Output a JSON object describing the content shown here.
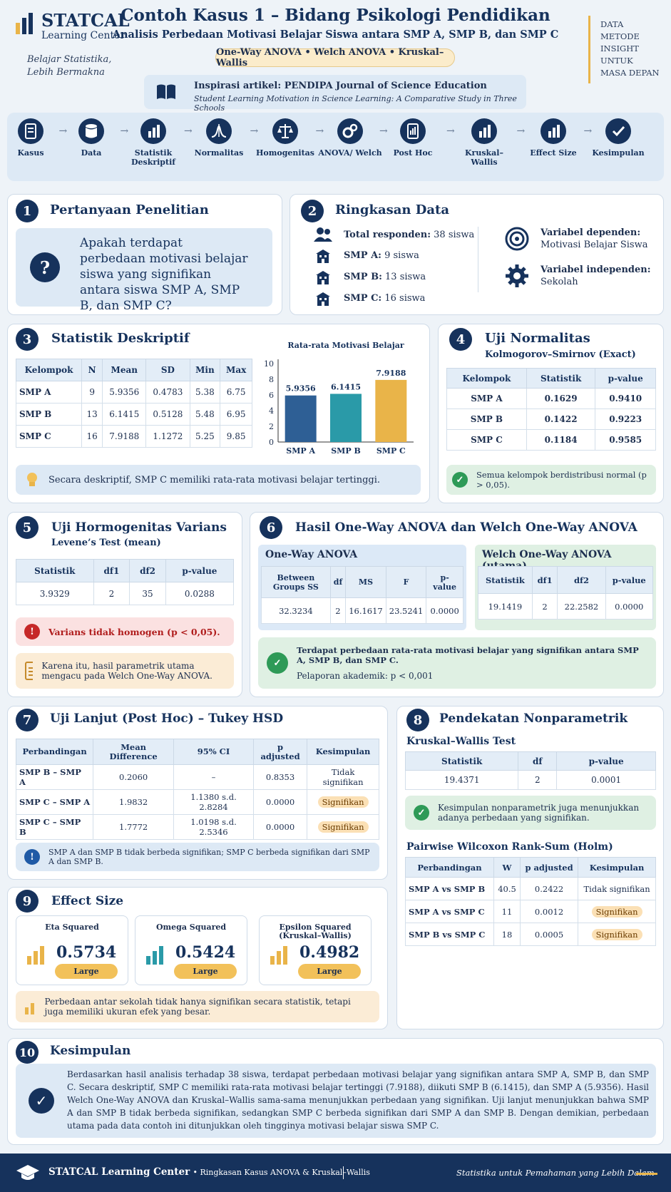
{
  "brand": {
    "name": "STATCAL",
    "sub": "Learning Center",
    "tagline1": "Belajar Statistika,",
    "tagline2": "Lebih Bermakna"
  },
  "header": {
    "title": "Contoh Kasus 1 – Bidang Psikologi Pendidikan",
    "subtitle": "Analisis Perbedaan Motivasi Belajar Siswa antara SMP A, SMP B, dan SMP C",
    "methods": "One-Way ANOVA • Welch ANOVA • Kruskal–Wallis",
    "inspiration": "Inspirasi artikel: PENDIPA Journal of Science Education",
    "article": "Student Learning Motivation in Science Learning: A Comparative Study in Three Schools",
    "side": [
      "DATA",
      "METODE",
      "INSIGHT",
      "UNTUK",
      "MASA DEPAN"
    ]
  },
  "steps": [
    {
      "label": "Kasus",
      "icon": "document-icon"
    },
    {
      "label": "Data",
      "icon": "database-icon"
    },
    {
      "label": "Statistik Deskriptif",
      "icon": "bar-chart-icon"
    },
    {
      "label": "Normalitas",
      "icon": "bell-curve-icon"
    },
    {
      "label": "Homogenitas",
      "icon": "scale-icon"
    },
    {
      "label": "ANOVA/ Welch",
      "icon": "gears-icon"
    },
    {
      "label": "Post Hoc",
      "icon": "report-icon"
    },
    {
      "label": "Kruskal–Wallis",
      "icon": "bar-chart-icon"
    },
    {
      "label": "Effect Size",
      "icon": "bar-chart-icon"
    },
    {
      "label": "Kesimpulan",
      "icon": "check-icon"
    }
  ],
  "s1": {
    "num": "1",
    "title": "Pertanyaan Penelitian",
    "question": "Apakah terdapat perbedaan motivasi belajar siswa yang signifikan antara siswa SMP A, SMP B, dan SMP C?"
  },
  "s2": {
    "num": "2",
    "title": "Ringkasan Data",
    "total_label": "Total responden:",
    "total": "38 siswa",
    "a_label": "SMP A:",
    "a": "9 siswa",
    "b_label": "SMP B:",
    "b": "13 siswa",
    "c_label": "SMP C:",
    "c": "16 siswa",
    "dep_label": "Variabel dependen:",
    "dep": "Motivasi Belajar Siswa",
    "ind_label": "Variabel independen:",
    "ind": "Sekolah"
  },
  "s3": {
    "num": "3",
    "title": "Statistik Deskriptif",
    "headers": [
      "Kelompok",
      "N",
      "Mean",
      "SD",
      "Min",
      "Max"
    ],
    "rows": [
      [
        "SMP A",
        "9",
        "5.9356",
        "0.4783",
        "5.38",
        "6.75"
      ],
      [
        "SMP B",
        "13",
        "6.1415",
        "0.5128",
        "5.48",
        "6.95"
      ],
      [
        "SMP C",
        "16",
        "7.9188",
        "1.1272",
        "5.25",
        "9.85"
      ]
    ],
    "note": "Secara deskriptif, SMP C memiliki rata-rata motivasi belajar tertinggi."
  },
  "chart_data": {
    "type": "bar",
    "title": "Rata-rata Motivasi Belajar",
    "categories": [
      "SMP A",
      "SMP B",
      "SMP C"
    ],
    "values": [
      5.9356,
      6.1415,
      7.9188
    ],
    "value_labels": [
      "5.9356",
      "6.1415",
      "7.9188"
    ],
    "ylim": [
      0,
      10
    ],
    "yticks": [
      0,
      2,
      4,
      6,
      8,
      10
    ],
    "colors": [
      "#2e5f95",
      "#2a9aa8",
      "#e9b449"
    ],
    "grid": false
  },
  "s4": {
    "num": "4",
    "title": "Uji Normalitas",
    "subtitle": "Kolmogorov–Smirnov (Exact)",
    "headers": [
      "Kelompok",
      "Statistik",
      "p-value"
    ],
    "rows": [
      [
        "SMP A",
        "0.1629",
        "0.9410"
      ],
      [
        "SMP B",
        "0.1422",
        "0.9223"
      ],
      [
        "SMP C",
        "0.1184",
        "0.9585"
      ]
    ],
    "note": "Semua kelompok berdistribusi normal (p > 0,05)."
  },
  "s5": {
    "num": "5",
    "title": "Uji Hormogenitas Varians",
    "subtitle": "Levene’s Test (mean)",
    "headers": [
      "Statistik",
      "df1",
      "df2",
      "p-value"
    ],
    "row": [
      "3.9329",
      "2",
      "35",
      "0.0288"
    ],
    "warn": "Varians tidak homogen (p < 0,05).",
    "note": "Karena itu, hasil parametrik utama mengacu pada Welch One-Way ANOVA."
  },
  "s6": {
    "num": "6",
    "title": "Hasil One-Way ANOVA dan Welch One-Way ANOVA",
    "anova_title": "One-Way ANOVA",
    "anova_headers": [
      "Between Groups SS",
      "df",
      "MS",
      "F",
      "p-value"
    ],
    "anova_row": [
      "32.3234",
      "2",
      "16.1617",
      "23.5241",
      "0.0000"
    ],
    "welch_title": "Welch One-Way ANOVA (utama)",
    "welch_headers": [
      "Statistik",
      "df1",
      "df2",
      "p-value"
    ],
    "welch_row": [
      "19.1419",
      "2",
      "22.2582",
      "0.0000"
    ],
    "note": "Terdapat perbedaan rata-rata motivasi belajar yang signifikan antara SMP A, SMP B, dan SMP C.",
    "note2": "Pelaporan akademik: p < 0,001"
  },
  "s7": {
    "num": "7",
    "title": "Uji Lanjut (Post Hoc) – Tukey HSD",
    "headers": [
      "Perbandingan",
      "Mean Difference",
      "95% CI",
      "p adjusted",
      "Kesimpulan"
    ],
    "rows": [
      [
        "SMP B – SMP A",
        "0.2060",
        "–",
        "0.8353",
        "Tidak signifikan"
      ],
      [
        "SMP C – SMP A",
        "1.9832",
        "1.1380 s.d. 2.8284",
        "0.0000",
        "Signifikan"
      ],
      [
        "SMP C – SMP B",
        "1.7772",
        "1.0198 s.d. 2.5346",
        "0.0000",
        "Signifikan"
      ]
    ],
    "note": "SMP A dan SMP B tidak berbeda signifikan; SMP C berbeda signifikan dari SMP A dan SMP B."
  },
  "s8": {
    "num": "8",
    "title": "Pendekatan Nonparametrik",
    "kw_title": "Kruskal–Wallis Test",
    "kw_headers": [
      "Statistik",
      "df",
      "p-value"
    ],
    "kw_row": [
      "19.4371",
      "2",
      "0.0001"
    ],
    "note": "Kesimpulan nonparametrik juga menunjukkan adanya perbedaan yang signifikan.",
    "pw_title": "Pairwise Wilcoxon Rank-Sum (Holm)",
    "pw_headers": [
      "Perbandingan",
      "W",
      "p adjusted",
      "Kesimpulan"
    ],
    "pw_rows": [
      [
        "SMP A vs SMP B",
        "40.5",
        "0.2422",
        "Tidak signifikan"
      ],
      [
        "SMP A vs SMP C",
        "11",
        "0.0012",
        "Signifikan"
      ],
      [
        "SMP B vs SMP C",
        "18",
        "0.0005",
        "Signifikan"
      ]
    ]
  },
  "s9": {
    "num": "9",
    "title": "Effect Size",
    "items": [
      {
        "name": "Eta Squared",
        "value": "0.5734",
        "size": "Large"
      },
      {
        "name": "Omega Squared",
        "value": "0.5424",
        "size": "Large"
      },
      {
        "name": "Epsilon Squared (Kruskal–Wallis)",
        "value": "0.4982",
        "size": "Large"
      }
    ],
    "note": "Perbedaan antar sekolah tidak hanya signifikan secara statistik, tetapi juga memiliki ukuran efek yang besar."
  },
  "s10": {
    "num": "10",
    "title": "Kesimpulan",
    "text": "Berdasarkan hasil analisis terhadap 38 siswa, terdapat perbedaan motivasi belajar yang signifikan antara SMP A, SMP B, dan SMP C. Secara deskriptif, SMP C memiliki rata-rata motivasi belajar tertinggi (7.9188), diikuti SMP B (6.1415), dan SMP A (5.9356). Hasil Welch One-Way ANOVA dan Kruskal–Wallis sama-sama menunjukkan perbedaan yang signifikan. Uji lanjut menunjukkan bahwa SMP A dan SMP B tidak berbeda signifikan, sedangkan SMP C berbeda signifikan dari SMP A dan SMP B. Dengan demikian, perbedaan utama pada data contoh ini ditunjukkan oleh tingginya motivasi belajar siswa SMP C."
  },
  "footer": {
    "brand": "STATCAL Learning Center",
    "desc": "• Ringkasan Kasus ANOVA & Kruskal–Wallis",
    "right": "Statistika untuk Pemahaman yang Lebih Dalam"
  }
}
